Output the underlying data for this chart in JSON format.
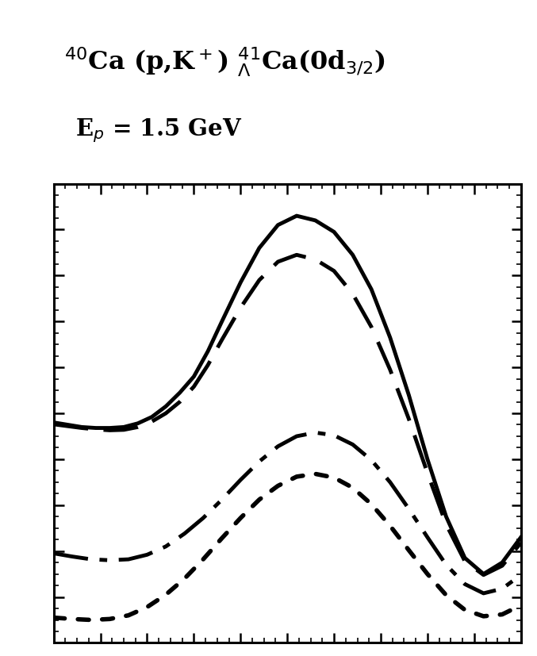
{
  "title_line1": "$^{40}$Ca (p,K$^+$) $^{41}_{\\Lambda}$Ca(0d$_{3/2}$)",
  "title_line2": "E$_p$ = 1.5 GeV",
  "xlim": [
    0.0,
    1.0
  ],
  "ylim": [
    0.0,
    1.0
  ],
  "curves": {
    "solid": {
      "x": [
        0.0,
        0.03,
        0.06,
        0.09,
        0.12,
        0.15,
        0.18,
        0.21,
        0.24,
        0.27,
        0.3,
        0.33,
        0.36,
        0.4,
        0.44,
        0.48,
        0.52,
        0.56,
        0.6,
        0.64,
        0.68,
        0.72,
        0.76,
        0.8,
        0.84,
        0.88,
        0.92,
        0.96,
        1.0
      ],
      "y": [
        0.48,
        0.475,
        0.47,
        0.468,
        0.468,
        0.47,
        0.478,
        0.492,
        0.515,
        0.545,
        0.58,
        0.635,
        0.7,
        0.785,
        0.86,
        0.91,
        0.93,
        0.92,
        0.895,
        0.845,
        0.77,
        0.665,
        0.54,
        0.4,
        0.275,
        0.185,
        0.15,
        0.175,
        0.23
      ],
      "linestyle": "solid",
      "linewidth": 3.5
    },
    "dashed": {
      "x": [
        0.0,
        0.03,
        0.06,
        0.09,
        0.12,
        0.15,
        0.18,
        0.21,
        0.24,
        0.27,
        0.3,
        0.33,
        0.36,
        0.4,
        0.44,
        0.48,
        0.52,
        0.56,
        0.6,
        0.64,
        0.68,
        0.72,
        0.76,
        0.8,
        0.84,
        0.88,
        0.92,
        0.96,
        1.0
      ],
      "y": [
        0.476,
        0.472,
        0.468,
        0.465,
        0.463,
        0.464,
        0.47,
        0.482,
        0.5,
        0.525,
        0.558,
        0.605,
        0.66,
        0.73,
        0.79,
        0.83,
        0.845,
        0.835,
        0.81,
        0.76,
        0.688,
        0.595,
        0.488,
        0.37,
        0.258,
        0.178,
        0.148,
        0.168,
        0.218
      ],
      "linestyle": "dashed",
      "linewidth": 3.5
    },
    "dashdot": {
      "x": [
        0.0,
        0.04,
        0.08,
        0.12,
        0.16,
        0.2,
        0.24,
        0.28,
        0.32,
        0.36,
        0.4,
        0.44,
        0.48,
        0.52,
        0.56,
        0.6,
        0.64,
        0.68,
        0.72,
        0.76,
        0.8,
        0.84,
        0.88,
        0.92,
        0.96,
        1.0
      ],
      "y": [
        0.195,
        0.188,
        0.182,
        0.18,
        0.182,
        0.192,
        0.21,
        0.238,
        0.272,
        0.312,
        0.355,
        0.395,
        0.428,
        0.45,
        0.458,
        0.452,
        0.432,
        0.398,
        0.35,
        0.292,
        0.23,
        0.17,
        0.128,
        0.108,
        0.118,
        0.148
      ],
      "linestyle": "dashdot",
      "linewidth": 3.5
    },
    "dotted": {
      "x": [
        0.0,
        0.04,
        0.08,
        0.12,
        0.16,
        0.2,
        0.24,
        0.28,
        0.32,
        0.36,
        0.4,
        0.44,
        0.48,
        0.52,
        0.56,
        0.6,
        0.64,
        0.68,
        0.72,
        0.76,
        0.8,
        0.84,
        0.88,
        0.92,
        0.96,
        1.0
      ],
      "y": [
        0.055,
        0.052,
        0.05,
        0.052,
        0.06,
        0.078,
        0.105,
        0.14,
        0.182,
        0.228,
        0.272,
        0.312,
        0.342,
        0.362,
        0.368,
        0.36,
        0.338,
        0.302,
        0.255,
        0.202,
        0.15,
        0.104,
        0.072,
        0.058,
        0.062,
        0.082
      ],
      "linestyle": "dotted",
      "linewidth": 4.0
    }
  },
  "background_color": "#ffffff"
}
